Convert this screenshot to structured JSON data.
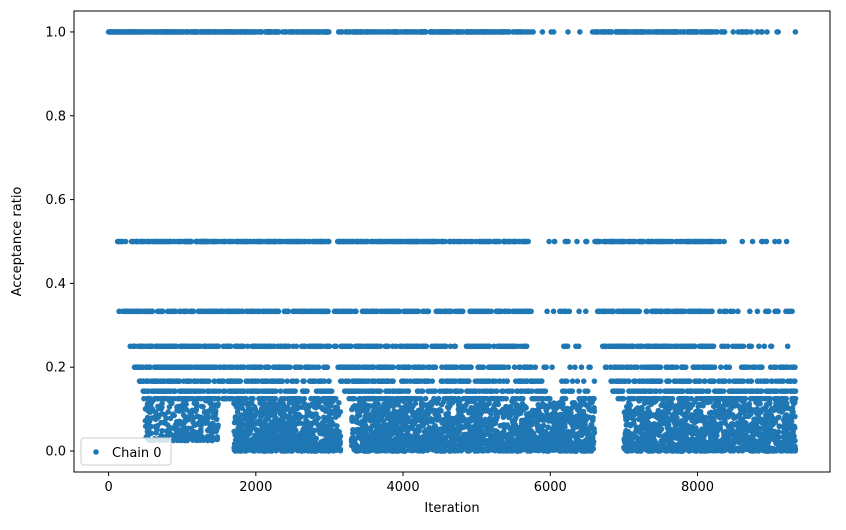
{
  "chart_data": {
    "type": "scatter",
    "xlabel": "Iteration",
    "ylabel": "Acceptance ratio",
    "xlim": [
      -470,
      9800
    ],
    "ylim": [
      -0.05,
      1.05
    ],
    "xticks": [
      0,
      2000,
      4000,
      6000,
      8000
    ],
    "yticks": [
      0.0,
      0.2,
      0.4,
      0.6,
      0.8,
      1.0
    ],
    "xtick_labels": [
      "0",
      "2000",
      "4000",
      "6000",
      "8000"
    ],
    "ytick_labels": [
      "0.0",
      "0.2",
      "0.4",
      "0.6",
      "0.8",
      "1.0"
    ],
    "legend_position": "lower-left",
    "grid": false,
    "series": [
      {
        "name": "Chain 0",
        "color": "#1f77b4",
        "marker": "circle",
        "level_bands": [
          {
            "y": 1.0,
            "segments": [
              [
                0,
                3000,
                0.55
              ],
              [
                3100,
                5700,
                0.45
              ],
              [
                5700,
                6600,
                0.08
              ],
              [
                6600,
                8200,
                0.5
              ],
              [
                8200,
                9300,
                0.12
              ]
            ],
            "extra_x": [
              9330
            ]
          },
          {
            "y": 0.5,
            "segments": [
              [
                120,
                3000,
                0.45
              ],
              [
                3100,
                5700,
                0.38
              ],
              [
                5700,
                6600,
                0.07
              ],
              [
                6600,
                8200,
                0.42
              ],
              [
                8200,
                9300,
                0.12
              ]
            ]
          },
          {
            "y": 0.3333,
            "segments": [
              [
                130,
                3000,
                0.4
              ],
              [
                3050,
                5700,
                0.35
              ],
              [
                5700,
                6600,
                0.07
              ],
              [
                6600,
                8200,
                0.38
              ],
              [
                8200,
                9330,
                0.12
              ]
            ]
          },
          {
            "y": 0.25,
            "segments": [
              [
                280,
                3000,
                0.38
              ],
              [
                3050,
                5700,
                0.33
              ],
              [
                5700,
                6600,
                0.06
              ],
              [
                6700,
                8200,
                0.36
              ],
              [
                8200,
                9330,
                0.12
              ]
            ]
          },
          {
            "y": 0.2,
            "segments": [
              [
                350,
                3000,
                0.36
              ],
              [
                3100,
                5800,
                0.3
              ],
              [
                5800,
                6600,
                0.06
              ],
              [
                6750,
                8200,
                0.34
              ],
              [
                8200,
                9330,
                0.14
              ]
            ]
          },
          {
            "y": 0.1667,
            "segments": [
              [
                400,
                3000,
                0.35
              ],
              [
                3150,
                5900,
                0.3
              ],
              [
                6000,
                6600,
                0.08
              ],
              [
                6800,
                9330,
                0.3
              ]
            ]
          },
          {
            "y": 0.1429,
            "segments": [
              [
                430,
                3050,
                0.35
              ],
              [
                3200,
                5950,
                0.3
              ],
              [
                6050,
                6600,
                0.1
              ],
              [
                6850,
                9330,
                0.3
              ]
            ]
          },
          {
            "y": 0.125,
            "segments": [
              [
                460,
                3100,
                0.34
              ],
              [
                3250,
                6000,
                0.3
              ],
              [
                6100,
                6600,
                0.12
              ],
              [
                6900,
                9330,
                0.3
              ]
            ]
          }
        ],
        "clusters": [
          {
            "x": [
              500,
              1500
            ],
            "y_top": 0.12,
            "y_bottom": 0.025,
            "count": 260
          },
          {
            "x": [
              1700,
              3150
            ],
            "y_top": 0.12,
            "y_bottom": 0.0,
            "count": 900
          },
          {
            "x": [
              3300,
              6600
            ],
            "y_top": 0.12,
            "y_bottom": 0.0,
            "count": 1800
          },
          {
            "x": [
              7000,
              9330
            ],
            "y_top": 0.12,
            "y_bottom": 0.0,
            "count": 1200
          }
        ]
      }
    ]
  }
}
